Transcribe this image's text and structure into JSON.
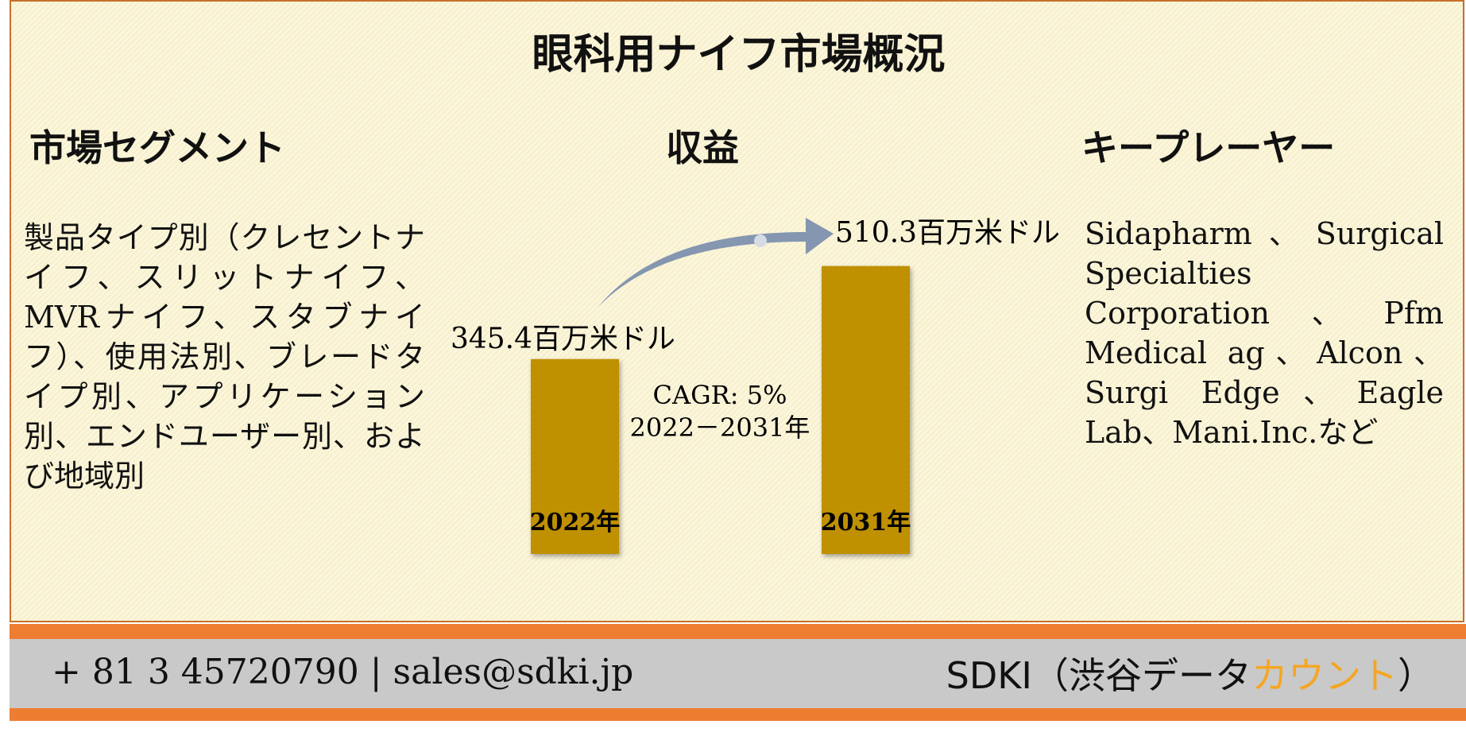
{
  "header": {
    "title": "眼科用ナイフ市場概況"
  },
  "segments": {
    "heading": "市場セグメント",
    "text": "製品タイプ別（クレセントナイフ、スリットナイフ、MVRナイフ、スタブナイフ）、使用法別、ブレードタイプ別、アプリケーション別、エンドユーザー別、および地域別"
  },
  "revenue_heading": "収益",
  "chart_data": {
    "type": "bar",
    "categories": [
      "2022年",
      "2031年"
    ],
    "values": [
      345.4,
      510.3
    ],
    "value_labels": [
      "345.4百万米ドル",
      "510.3百万米ドル"
    ],
    "color": "#bf9000",
    "annotations": [
      "CAGR: 5%",
      "2022－2031年"
    ]
  },
  "players": {
    "heading": "キープレーヤー",
    "text": "Sidapharm、Surgical Specialties Corporation、Pfm Medical ag、Alcon、Surgi Edge、Eagle Lab、Mani.Inc.など"
  },
  "footer": {
    "contact": "+ 81 3 45720790 | sales@sdki.jp",
    "brand": [
      "SDKI（渋谷データ",
      "カウント",
      "）"
    ]
  }
}
